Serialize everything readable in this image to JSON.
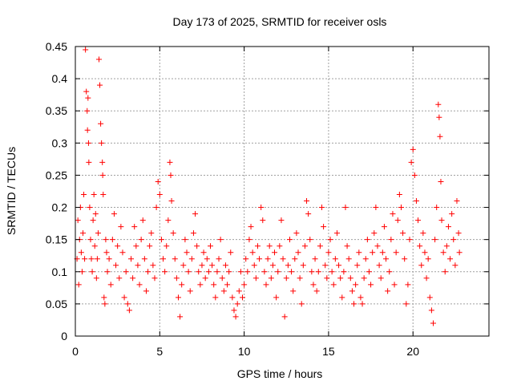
{
  "chart_data": {
    "type": "scatter",
    "title": "Day 173 of 2025, SRMTID for receiver osls",
    "xlabel": "GPS time / hours",
    "ylabel": "SRMTID / TECUs",
    "xlim": [
      0,
      24.5
    ],
    "ylim": [
      0,
      0.45
    ],
    "xticks": [
      0,
      5,
      10,
      15,
      20
    ],
    "xtick_labels": [
      "0",
      "5",
      "10",
      "15",
      "20"
    ],
    "yticks": [
      0,
      0.05,
      0.1,
      0.15,
      0.2,
      0.25,
      0.3,
      0.35,
      0.4,
      0.45
    ],
    "ytick_labels": [
      "0",
      "0.05",
      "0.1",
      "0.15",
      "0.2",
      "0.25",
      "0.3",
      "0.35",
      "0.4",
      "0.45"
    ],
    "grid": true,
    "marker": "+",
    "series": [
      {
        "name": "SRMTID",
        "color": "#ff0000",
        "points": [
          [
            0.1,
            0.12
          ],
          [
            0.15,
            0.18
          ],
          [
            0.2,
            0.08
          ],
          [
            0.25,
            0.15
          ],
          [
            0.3,
            0.2
          ],
          [
            0.35,
            0.13
          ],
          [
            0.4,
            0.1
          ],
          [
            0.45,
            0.16
          ],
          [
            0.5,
            0.22
          ],
          [
            0.55,
            0.12
          ],
          [
            0.6,
            0.445
          ],
          [
            0.65,
            0.38
          ],
          [
            0.7,
            0.35
          ],
          [
            0.72,
            0.32
          ],
          [
            0.75,
            0.37
          ],
          [
            0.78,
            0.3
          ],
          [
            0.8,
            0.27
          ],
          [
            0.85,
            0.2
          ],
          [
            0.9,
            0.15
          ],
          [
            0.95,
            0.12
          ],
          [
            1.0,
            0.1
          ],
          [
            1.05,
            0.18
          ],
          [
            1.1,
            0.22
          ],
          [
            1.15,
            0.14
          ],
          [
            1.2,
            0.19
          ],
          [
            1.25,
            0.09
          ],
          [
            1.3,
            0.12
          ],
          [
            1.35,
            0.16
          ],
          [
            1.4,
            0.43
          ],
          [
            1.45,
            0.39
          ],
          [
            1.5,
            0.33
          ],
          [
            1.55,
            0.3
          ],
          [
            1.6,
            0.27
          ],
          [
            1.62,
            0.25
          ],
          [
            1.65,
            0.22
          ],
          [
            1.7,
            0.06
          ],
          [
            1.75,
            0.05
          ],
          [
            1.8,
            0.15
          ],
          [
            1.85,
            0.13
          ],
          [
            1.9,
            0.1
          ],
          [
            2.0,
            0.12
          ],
          [
            2.1,
            0.08
          ],
          [
            2.2,
            0.15
          ],
          [
            2.3,
            0.19
          ],
          [
            2.4,
            0.11
          ],
          [
            2.5,
            0.14
          ],
          [
            2.6,
            0.09
          ],
          [
            2.7,
            0.17
          ],
          [
            2.8,
            0.13
          ],
          [
            2.9,
            0.06
          ],
          [
            3.0,
            0.1
          ],
          [
            3.1,
            0.05
          ],
          [
            3.2,
            0.04
          ],
          [
            3.3,
            0.12
          ],
          [
            3.4,
            0.09
          ],
          [
            3.5,
            0.17
          ],
          [
            3.6,
            0.14
          ],
          [
            3.7,
            0.11
          ],
          [
            3.8,
            0.08
          ],
          [
            3.9,
            0.15
          ],
          [
            4.0,
            0.18
          ],
          [
            4.1,
            0.12
          ],
          [
            4.2,
            0.07
          ],
          [
            4.3,
            0.1
          ],
          [
            4.4,
            0.14
          ],
          [
            4.5,
            0.16
          ],
          [
            4.6,
            0.11
          ],
          [
            4.7,
            0.09
          ],
          [
            4.8,
            0.2
          ],
          [
            4.9,
            0.24
          ],
          [
            5.0,
            0.22
          ],
          [
            5.1,
            0.15
          ],
          [
            5.2,
            0.12
          ],
          [
            5.3,
            0.1
          ],
          [
            5.4,
            0.14
          ],
          [
            5.5,
            0.18
          ],
          [
            5.6,
            0.27
          ],
          [
            5.65,
            0.25
          ],
          [
            5.7,
            0.21
          ],
          [
            5.8,
            0.16
          ],
          [
            5.9,
            0.12
          ],
          [
            6.0,
            0.09
          ],
          [
            6.1,
            0.06
          ],
          [
            6.2,
            0.03
          ],
          [
            6.3,
            0.08
          ],
          [
            6.4,
            0.11
          ],
          [
            6.5,
            0.15
          ],
          [
            6.6,
            0.13
          ],
          [
            6.7,
            0.1
          ],
          [
            6.8,
            0.07
          ],
          [
            6.9,
            0.12
          ],
          [
            7.0,
            0.16
          ],
          [
            7.1,
            0.19
          ],
          [
            7.2,
            0.14
          ],
          [
            7.3,
            0.1
          ],
          [
            7.4,
            0.08
          ],
          [
            7.5,
            0.11
          ],
          [
            7.6,
            0.13
          ],
          [
            7.7,
            0.09
          ],
          [
            7.8,
            0.12
          ],
          [
            7.9,
            0.1
          ],
          [
            8.0,
            0.14
          ],
          [
            8.1,
            0.11
          ],
          [
            8.2,
            0.08
          ],
          [
            8.3,
            0.06
          ],
          [
            8.4,
            0.1
          ],
          [
            8.5,
            0.12
          ],
          [
            8.6,
            0.15
          ],
          [
            8.7,
            0.09
          ],
          [
            8.8,
            0.07
          ],
          [
            8.9,
            0.11
          ],
          [
            9.0,
            0.08
          ],
          [
            9.1,
            0.1
          ],
          [
            9.2,
            0.13
          ],
          [
            9.3,
            0.06
          ],
          [
            9.4,
            0.04
          ],
          [
            9.5,
            0.03
          ],
          [
            9.6,
            0.05
          ],
          [
            9.7,
            0.07
          ],
          [
            9.8,
            0.1
          ],
          [
            9.9,
            0.06
          ],
          [
            10.0,
            0.08
          ],
          [
            10.1,
            0.12
          ],
          [
            10.2,
            0.1
          ],
          [
            10.3,
            0.15
          ],
          [
            10.4,
            0.17
          ],
          [
            10.5,
            0.13
          ],
          [
            10.6,
            0.11
          ],
          [
            10.7,
            0.09
          ],
          [
            10.8,
            0.14
          ],
          [
            10.9,
            0.12
          ],
          [
            11.0,
            0.2
          ],
          [
            11.1,
            0.18
          ],
          [
            11.2,
            0.1
          ],
          [
            11.3,
            0.08
          ],
          [
            11.4,
            0.12
          ],
          [
            11.5,
            0.14
          ],
          [
            11.6,
            0.09
          ],
          [
            11.7,
            0.11
          ],
          [
            11.8,
            0.13
          ],
          [
            11.9,
            0.06
          ],
          [
            12.0,
            0.1
          ],
          [
            12.1,
            0.14
          ],
          [
            12.2,
            0.18
          ],
          [
            12.3,
            0.12
          ],
          [
            12.4,
            0.03
          ],
          [
            12.5,
            0.09
          ],
          [
            12.6,
            0.11
          ],
          [
            12.7,
            0.15
          ],
          [
            12.8,
            0.1
          ],
          [
            12.9,
            0.07
          ],
          [
            13.0,
            0.12
          ],
          [
            13.1,
            0.16
          ],
          [
            13.2,
            0.13
          ],
          [
            13.3,
            0.09
          ],
          [
            13.4,
            0.05
          ],
          [
            13.5,
            0.11
          ],
          [
            13.6,
            0.14
          ],
          [
            13.7,
            0.21
          ],
          [
            13.8,
            0.19
          ],
          [
            13.9,
            0.15
          ],
          [
            14.0,
            0.1
          ],
          [
            14.1,
            0.08
          ],
          [
            14.2,
            0.12
          ],
          [
            14.3,
            0.07
          ],
          [
            14.4,
            0.1
          ],
          [
            14.5,
            0.14
          ],
          [
            14.6,
            0.2
          ],
          [
            14.7,
            0.17
          ],
          [
            14.8,
            0.11
          ],
          [
            14.9,
            0.09
          ],
          [
            15.0,
            0.13
          ],
          [
            15.1,
            0.15
          ],
          [
            15.2,
            0.1
          ],
          [
            15.3,
            0.08
          ],
          [
            15.4,
            0.12
          ],
          [
            15.5,
            0.16
          ],
          [
            15.6,
            0.11
          ],
          [
            15.7,
            0.09
          ],
          [
            15.8,
            0.06
          ],
          [
            15.9,
            0.1
          ],
          [
            16.0,
            0.2
          ],
          [
            16.1,
            0.14
          ],
          [
            16.2,
            0.12
          ],
          [
            16.3,
            0.09
          ],
          [
            16.4,
            0.07
          ],
          [
            16.5,
            0.05
          ],
          [
            16.6,
            0.08
          ],
          [
            16.7,
            0.11
          ],
          [
            16.8,
            0.13
          ],
          [
            16.9,
            0.06
          ],
          [
            17.0,
            0.05
          ],
          [
            17.1,
            0.09
          ],
          [
            17.2,
            0.12
          ],
          [
            17.3,
            0.15
          ],
          [
            17.4,
            0.1
          ],
          [
            17.5,
            0.08
          ],
          [
            17.6,
            0.13
          ],
          [
            17.7,
            0.16
          ],
          [
            17.8,
            0.2
          ],
          [
            17.9,
            0.14
          ],
          [
            18.0,
            0.11
          ],
          [
            18.1,
            0.09
          ],
          [
            18.2,
            0.13
          ],
          [
            18.3,
            0.17
          ],
          [
            18.4,
            0.12
          ],
          [
            18.5,
            0.07
          ],
          [
            18.6,
            0.1
          ],
          [
            18.7,
            0.15
          ],
          [
            18.8,
            0.19
          ],
          [
            18.9,
            0.08
          ],
          [
            19.0,
            0.13
          ],
          [
            19.1,
            0.18
          ],
          [
            19.2,
            0.22
          ],
          [
            19.3,
            0.2
          ],
          [
            19.4,
            0.16
          ],
          [
            19.5,
            0.12
          ],
          [
            19.6,
            0.05
          ],
          [
            19.7,
            0.08
          ],
          [
            19.8,
            0.15
          ],
          [
            19.9,
            0.27
          ],
          [
            20.0,
            0.29
          ],
          [
            20.1,
            0.25
          ],
          [
            20.2,
            0.21
          ],
          [
            20.3,
            0.18
          ],
          [
            20.4,
            0.14
          ],
          [
            20.5,
            0.11
          ],
          [
            20.6,
            0.16
          ],
          [
            20.7,
            0.13
          ],
          [
            20.8,
            0.09
          ],
          [
            20.9,
            0.12
          ],
          [
            21.0,
            0.06
          ],
          [
            21.1,
            0.04
          ],
          [
            21.2,
            0.02
          ],
          [
            21.3,
            0.15
          ],
          [
            21.4,
            0.2
          ],
          [
            21.5,
            0.36
          ],
          [
            21.55,
            0.34
          ],
          [
            21.6,
            0.31
          ],
          [
            21.65,
            0.24
          ],
          [
            21.7,
            0.18
          ],
          [
            21.8,
            0.13
          ],
          [
            21.9,
            0.1
          ],
          [
            22.0,
            0.14
          ],
          [
            22.1,
            0.17
          ],
          [
            22.2,
            0.12
          ],
          [
            22.3,
            0.19
          ],
          [
            22.4,
            0.15
          ],
          [
            22.5,
            0.11
          ],
          [
            22.6,
            0.21
          ],
          [
            22.7,
            0.16
          ],
          [
            22.75,
            0.13
          ]
        ]
      }
    ]
  }
}
